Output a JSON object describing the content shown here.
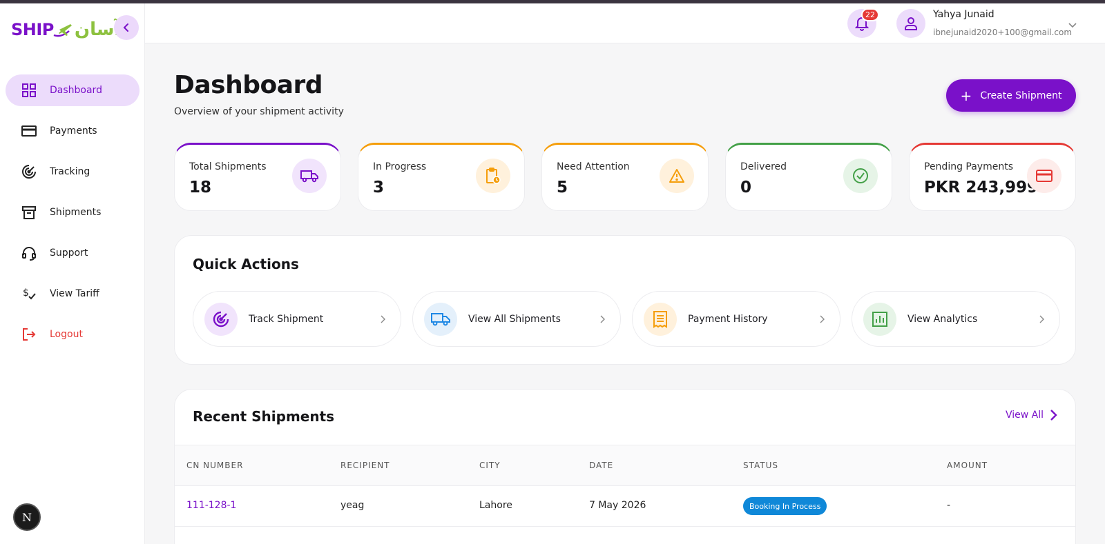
{
  "brand": {
    "ship": "SHIP",
    "urdu": "آسان",
    "primary": "#7a11c9",
    "accent": "#8dc13f"
  },
  "sidebar": {
    "items": [
      {
        "label": "Dashboard",
        "icon": "grid-icon",
        "active": true
      },
      {
        "label": "Payments",
        "icon": "card-icon"
      },
      {
        "label": "Tracking",
        "icon": "target-icon"
      },
      {
        "label": "Shipments",
        "icon": "archive-icon"
      },
      {
        "label": "Support",
        "icon": "headset-icon"
      },
      {
        "label": "View Tariff",
        "icon": "tariff-icon"
      },
      {
        "label": "Logout",
        "icon": "logout-icon"
      }
    ],
    "dev_badge": "N"
  },
  "header": {
    "notification_count": "22",
    "user_name": "Yahya Junaid",
    "user_email": "ibnejunaid2020+100@gmail.com"
  },
  "page": {
    "title": "Dashboard",
    "subtitle": "Overview of your shipment activity",
    "create_button": "Create Shipment"
  },
  "stats": [
    {
      "label": "Total Shipments",
      "value": "18",
      "color": "#7a11c9",
      "icon": "truck-icon"
    },
    {
      "label": "In Progress",
      "value": "3",
      "color": "#f59e0b",
      "icon": "clipboard-clock-icon"
    },
    {
      "label": "Need Attention",
      "value": "5",
      "color": "#f59e0b",
      "icon": "warning-icon"
    },
    {
      "label": "Delivered",
      "value": "0",
      "color": "#43a047",
      "icon": "check-circle-icon"
    },
    {
      "label": "Pending Payments",
      "value": "PKR 243,999",
      "color": "#e53935",
      "icon": "credit-card-icon"
    }
  ],
  "quick_actions": {
    "title": "Quick Actions",
    "items": [
      {
        "label": "Track Shipment",
        "icon": "target-icon"
      },
      {
        "label": "View All Shipments",
        "icon": "truck-icon"
      },
      {
        "label": "Payment History",
        "icon": "receipt-icon"
      },
      {
        "label": "View Analytics",
        "icon": "analytics-icon"
      }
    ]
  },
  "recent": {
    "title": "Recent Shipments",
    "view_all": "View All",
    "columns": [
      "CN NUMBER",
      "RECIPIENT",
      "CITY",
      "DATE",
      "STATUS",
      "AMOUNT"
    ],
    "rows": [
      {
        "cn": "111-128-1",
        "recipient": "yeag",
        "city": "Lahore",
        "date": "7 May 2026",
        "status": "Booking In Process",
        "amount": "-"
      }
    ]
  }
}
